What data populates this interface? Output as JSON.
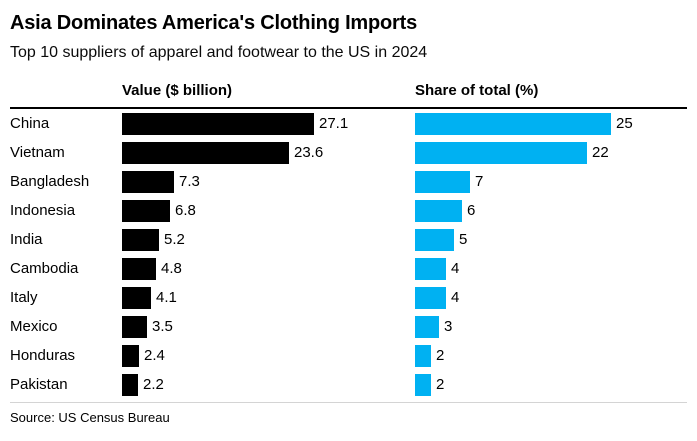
{
  "chart_data": {
    "type": "bar",
    "orientation": "horizontal",
    "title": "Asia Dominates America's Clothing Imports",
    "subtitle": "Top 10 suppliers of apparel and footwear to the US in 2024",
    "source": "Source: US Census Bureau",
    "categories": [
      "China",
      "Vietnam",
      "Bangladesh",
      "Indonesia",
      "India",
      "Cambodia",
      "Italy",
      "Mexico",
      "Honduras",
      "Pakistan"
    ],
    "series": [
      {
        "name": "Value ($ billion)",
        "values": [
          27.1,
          23.6,
          7.3,
          6.8,
          5.2,
          4.8,
          4.1,
          3.5,
          2.4,
          2.2
        ],
        "color": "#000000",
        "axis_range": [
          0,
          27.1
        ]
      },
      {
        "name": "Share of total (%)",
        "values": [
          25,
          22,
          7,
          6,
          5,
          4,
          4,
          3,
          2,
          2
        ],
        "color": "#00b1f2",
        "axis_range": [
          0,
          25
        ]
      }
    ],
    "grid": false,
    "data_labels": true,
    "legend_position": "column-headers"
  }
}
